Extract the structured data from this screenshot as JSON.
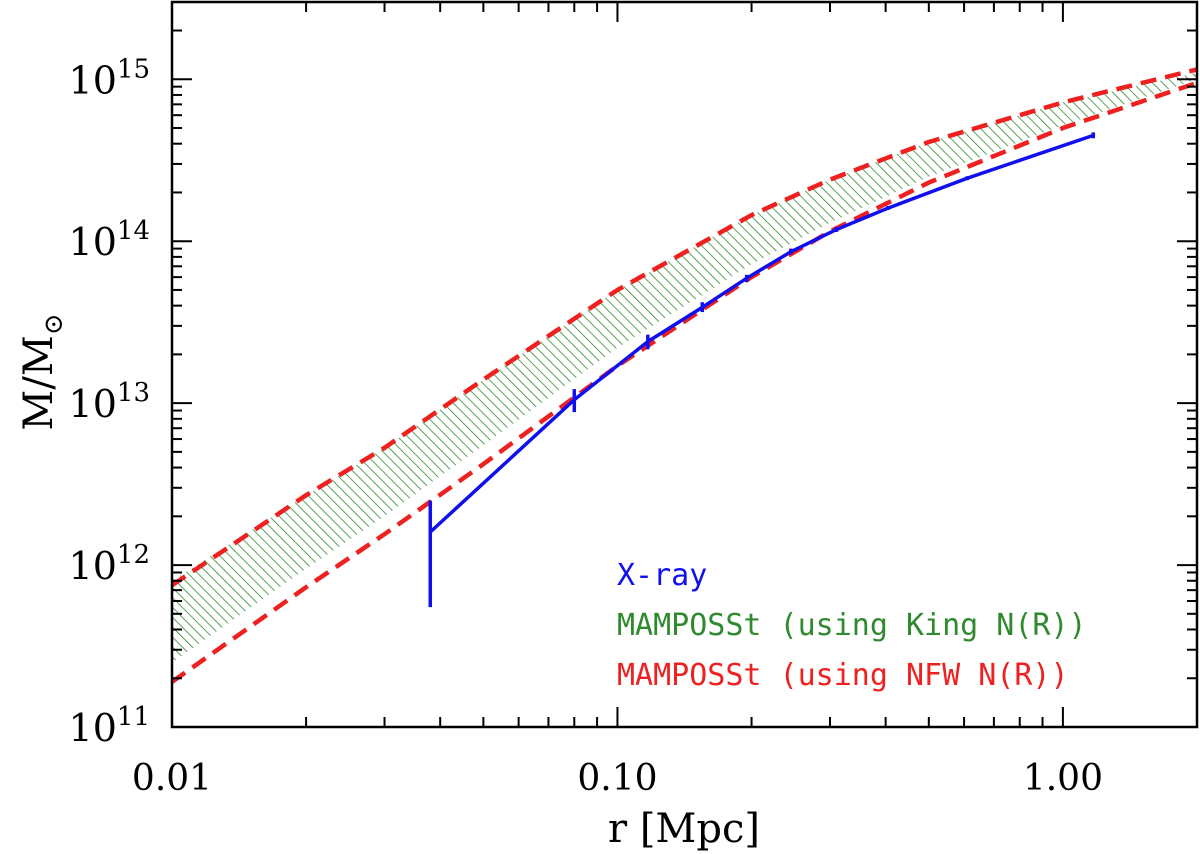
{
  "colors": {
    "xray": "#1010ee",
    "king_band": "#2f8a2f",
    "nfw": "#ee2020",
    "axis": "#000000"
  },
  "chart_data": {
    "type": "line",
    "xscale": "log",
    "yscale": "log",
    "xlim": [
      0.01,
      2.0
    ],
    "ylim": [
      100000000000,
      3000000000000000
    ],
    "xlabel": "r [Mpc]",
    "ylabel": "M/M",
    "ylabel_subscript": "⊙",
    "x_ticks": [
      {
        "value": 0.01,
        "label": "0.01"
      },
      {
        "value": 0.1,
        "label": "0.10"
      },
      {
        "value": 1.0,
        "label": "1.00"
      }
    ],
    "y_ticks": [
      {
        "value": 100000000000,
        "base": "10",
        "exp": "11"
      },
      {
        "value": 1000000000000,
        "base": "10",
        "exp": "12"
      },
      {
        "value": 10000000000000,
        "base": "10",
        "exp": "13"
      },
      {
        "value": 100000000000000,
        "base": "10",
        "exp": "14"
      },
      {
        "value": 1000000000000000,
        "base": "10",
        "exp": "15"
      }
    ],
    "legend": [
      {
        "label": "X-ray",
        "color_key": "xray"
      },
      {
        "label": "MAMPOSSt (using King N(R))",
        "color_key": "king_band"
      },
      {
        "label": "MAMPOSSt (using NFW N(R))",
        "color_key": "nfw"
      }
    ],
    "legend_position": "bottom-right",
    "series": [
      {
        "name": "X-ray",
        "style": "solid",
        "x": [
          0.038,
          0.08,
          0.117,
          0.155,
          0.195,
          0.245,
          0.31,
          0.405,
          0.61,
          1.17
        ],
        "y": [
          1600000000000,
          10500000000000,
          24000000000000,
          39000000000000,
          59000000000000,
          86000000000000,
          118000000000000,
          160000000000000,
          245000000000000,
          450000000000000
        ],
        "err_low": [
          550000000000,
          8800000000000,
          21500000000000,
          36500000000000,
          56000000000000,
          83000000000000,
          114000000000000,
          156000000000000,
          238000000000000,
          432000000000000
        ],
        "err_high": [
          2500000000000,
          12200000000000,
          26500000000000,
          42000000000000,
          62000000000000,
          90000000000000,
          122000000000000,
          165000000000000,
          252000000000000,
          470000000000000
        ]
      },
      {
        "name": "MAMPOSSt (using King N(R))",
        "style": "hatched-band",
        "x": [
          0.01,
          0.02,
          0.03,
          0.05,
          0.1,
          0.2,
          0.3,
          0.5,
          1.0,
          2.0
        ],
        "y_upper": [
          800000000000,
          2700000000000,
          5300000000000,
          14000000000000,
          50000000000000,
          145000000000000,
          240000000000000,
          410000000000000,
          720000000000000,
          1100000000000000
        ],
        "y_lower": [
          250000000000,
          950000000000,
          2000000000000,
          5500000000000,
          22000000000000,
          72000000000000,
          130000000000000,
          250000000000000,
          520000000000000,
          1000000000000000
        ]
      },
      {
        "name": "MAMPOSSt (using NFW N(R)) upper",
        "style": "dashed",
        "x": [
          0.01,
          0.02,
          0.03,
          0.05,
          0.1,
          0.2,
          0.3,
          0.5,
          1.0,
          2.0
        ],
        "y": [
          750000000000,
          2700000000000,
          5300000000000,
          14000000000000,
          50000000000000,
          145000000000000,
          240000000000000,
          410000000000000,
          720000000000000,
          1150000000000000
        ]
      },
      {
        "name": "MAMPOSSt (using NFW N(R)) lower",
        "style": "dashed",
        "x": [
          0.01,
          0.02,
          0.03,
          0.05,
          0.1,
          0.2,
          0.3,
          0.5,
          1.0,
          2.0
        ],
        "y": [
          190000000000,
          730000000000,
          1550000000000,
          4200000000000,
          17000000000000,
          60000000000000,
          115000000000000,
          230000000000000,
          500000000000000,
          950000000000000
        ]
      }
    ]
  }
}
